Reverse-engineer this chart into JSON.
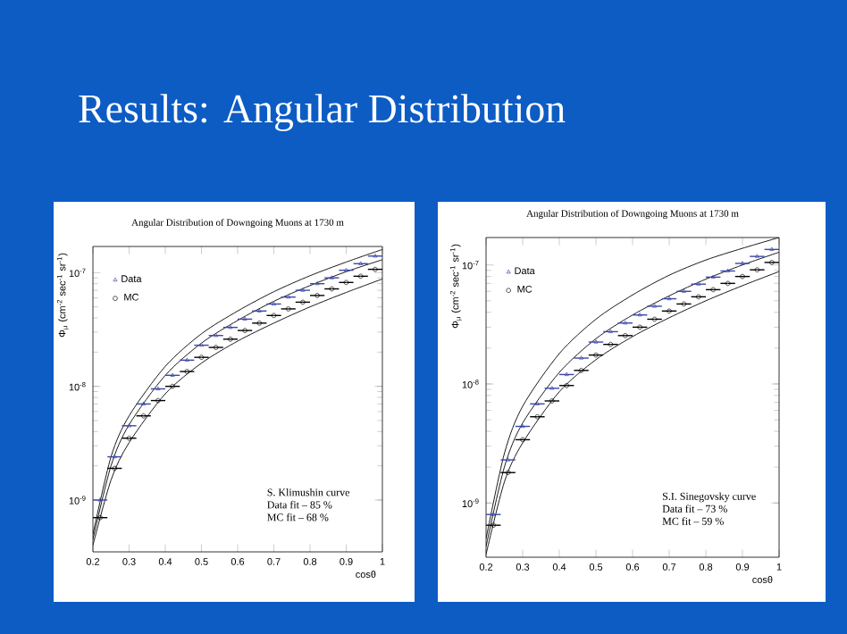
{
  "chart_data": [
    {
      "type": "other",
      "title": "Results: Angular Distribution"
    },
    {
      "type": "scatter",
      "title": "Angular Distribution of Downgoing Muons at 1730 m",
      "xlabel": "cosθ",
      "ylabel": "Φ$_{μ}$ (cm$^{-2}$ sec$^{-1}$ sr$^{-1}$)",
      "log": "y",
      "legend": "top left",
      "xlim": [
        0.2,
        1
      ],
      "ylim": [
        3.5e-10,
        1.7e-07
      ],
      "xticks": [
        0.2,
        0.3,
        0.4,
        0.5,
        0.6,
        0.7,
        0.8,
        0.9,
        1
      ],
      "yticks": [
        {
          "value": 1e-09,
          "label": "10$^{-9}$"
        },
        {
          "value": 1e-08,
          "label": "10$^{-8}$"
        },
        {
          "value": 1e-07,
          "label": "10$^{-7}$"
        }
      ],
      "x": [
        0.22,
        0.26,
        0.3,
        0.34,
        0.38,
        0.42,
        0.46,
        0.5,
        0.54,
        0.58,
        0.62,
        0.66,
        0.7,
        0.74,
        0.78,
        0.82,
        0.86,
        0.9,
        0.94,
        0.98
      ],
      "series": [
        {
          "name": "Data",
          "color": "#3a46a8",
          "marker": "triangle",
          "values": [
            1e-09,
            2.4e-09,
            4.5e-09,
            7e-09,
            9.5e-09,
            1.25e-08,
            1.7e-08,
            2.3e-08,
            2.8e-08,
            3.3e-08,
            3.9e-08,
            4.6e-08,
            5.3e-08,
            6.1e-08,
            7e-08,
            8e-08,
            9e-08,
            1.05e-07,
            1.2e-07,
            1.4e-07
          ],
          "xerrors": [
            0.02,
            0.02,
            0.02,
            0.02,
            0.02,
            0.02,
            0.02,
            0.02,
            0.02,
            0.02,
            0.02,
            0.02,
            0.02,
            0.02,
            0.02,
            0.02,
            0.02,
            0.02,
            0.02,
            0.02
          ]
        },
        {
          "name": "MC",
          "color": "#000000",
          "marker": "circle",
          "values": [
            7e-10,
            1.9e-09,
            3.5e-09,
            5.5e-09,
            7.5e-09,
            1e-08,
            1.35e-08,
            1.8e-08,
            2.2e-08,
            2.6e-08,
            3.1e-08,
            3.6e-08,
            4.2e-08,
            4.8e-08,
            5.5e-08,
            6.3e-08,
            7.2e-08,
            8.2e-08,
            9.3e-08,
            1.07e-07
          ],
          "xerrors": [
            0.02,
            0.02,
            0.02,
            0.02,
            0.02,
            0.02,
            0.02,
            0.02,
            0.02,
            0.02,
            0.02,
            0.02,
            0.02,
            0.02,
            0.02,
            0.02,
            0.02,
            0.02,
            0.02,
            0.02
          ]
        },
        {
          "type": "line",
          "color": "#000000",
          "marker": "none",
          "x": [
            0.2,
            0.25,
            0.3,
            0.4,
            0.5,
            0.6,
            0.7,
            0.8,
            0.9,
            1.0
          ],
          "values": [
            5e-10,
            2.4e-09,
            5.5e-09,
            1.5e-08,
            2.9e-08,
            4.6e-08,
            6.8e-08,
            9.4e-08,
            1.24e-07,
            1.6e-07
          ]
        },
        {
          "type": "line",
          "color": "#000000",
          "marker": "none",
          "x": [
            0.2,
            0.25,
            0.3,
            0.4,
            0.5,
            0.6,
            0.7,
            0.8,
            0.9,
            1.0
          ],
          "values": [
            4.5e-10,
            2e-09,
            4.6e-09,
            1.25e-08,
            2.4e-08,
            3.8e-08,
            5.6e-08,
            7.7e-08,
            1.02e-07,
            1.3e-07
          ]
        },
        {
          "type": "line",
          "color": "#000000",
          "marker": "none",
          "x": [
            0.2,
            0.25,
            0.3,
            0.4,
            0.5,
            0.6,
            0.7,
            0.8,
            0.9,
            1.0
          ],
          "values": [
            4e-10,
            1.5e-09,
            3.2e-09,
            8.6e-09,
            1.6e-08,
            2.5e-08,
            3.6e-08,
            5e-08,
            6.7e-08,
            8.8e-08
          ]
        }
      ],
      "annotations": [
        "S. Klimushin curve",
        "Data fit – 85 %",
        "MC fit – 68 %"
      ]
    },
    {
      "type": "scatter",
      "title": "Angular Distribution of Downgoing Muons at 1730 m",
      "xlabel": "cosθ",
      "ylabel": "Φ$_{μ}$ (cm$^{-2}$ sec$^{-1}$ sr$^{-1}$)",
      "log": "y",
      "legend": "top left",
      "xlim": [
        0.2,
        1
      ],
      "ylim": [
        3.5e-10,
        1.7e-07
      ],
      "xticks": [
        0.2,
        0.3,
        0.4,
        0.5,
        0.6,
        0.7,
        0.8,
        0.9,
        1
      ],
      "yticks": [
        {
          "value": 1e-09,
          "label": "10$^{-9}$"
        },
        {
          "value": 1e-08,
          "label": "10$^{-8}$"
        },
        {
          "value": 1e-07,
          "label": "10$^{-7}$"
        }
      ],
      "x": [
        0.22,
        0.26,
        0.3,
        0.34,
        0.38,
        0.42,
        0.46,
        0.5,
        0.54,
        0.58,
        0.62,
        0.66,
        0.7,
        0.74,
        0.78,
        0.82,
        0.86,
        0.9,
        0.94,
        0.98
      ],
      "series": [
        {
          "name": "Data",
          "color": "#3a46a8",
          "marker": "triangle",
          "values": [
            8e-10,
            2.3e-09,
            4.4e-09,
            6.8e-09,
            9.2e-09,
            1.2e-08,
            1.65e-08,
            2.25e-08,
            2.75e-08,
            3.25e-08,
            3.8e-08,
            4.5e-08,
            5.2e-08,
            6e-08,
            6.9e-08,
            7.9e-08,
            8.9e-08,
            1.03e-07,
            1.18e-07,
            1.35e-07
          ],
          "xerrors": [
            0.02,
            0.02,
            0.02,
            0.02,
            0.02,
            0.02,
            0.02,
            0.02,
            0.02,
            0.02,
            0.02,
            0.02,
            0.02,
            0.02,
            0.02,
            0.02,
            0.02,
            0.02,
            0.02,
            0.02
          ]
        },
        {
          "name": "MC",
          "color": "#000000",
          "marker": "circle",
          "values": [
            6.5e-10,
            1.8e-09,
            3.4e-09,
            5.3e-09,
            7.2e-09,
            9.7e-09,
            1.3e-08,
            1.75e-08,
            2.15e-08,
            2.55e-08,
            3e-08,
            3.5e-08,
            4.1e-08,
            4.7e-08,
            5.4e-08,
            6.2e-08,
            7e-08,
            8e-08,
            9.1e-08,
            1.05e-07
          ],
          "xerrors": [
            0.02,
            0.02,
            0.02,
            0.02,
            0.02,
            0.02,
            0.02,
            0.02,
            0.02,
            0.02,
            0.02,
            0.02,
            0.02,
            0.02,
            0.02,
            0.02,
            0.02,
            0.02,
            0.02,
            0.02
          ]
        },
        {
          "type": "line",
          "color": "#000000",
          "marker": "none",
          "x": [
            0.2,
            0.25,
            0.3,
            0.4,
            0.5,
            0.6,
            0.7,
            0.8,
            0.9,
            1.0
          ],
          "values": [
            5e-10,
            2.6e-09,
            6.5e-09,
            1.8e-08,
            3.5e-08,
            5.6e-08,
            8.2e-08,
            1.1e-07,
            1.38e-07,
            1.7e-07
          ]
        },
        {
          "type": "line",
          "color": "#000000",
          "marker": "none",
          "x": [
            0.2,
            0.25,
            0.3,
            0.4,
            0.5,
            0.6,
            0.7,
            0.8,
            0.9,
            1.0
          ],
          "values": [
            4.3e-10,
            2e-09,
            4.7e-09,
            1.25e-08,
            2.4e-08,
            3.8e-08,
            5.5e-08,
            7.6e-08,
            1e-07,
            1.28e-07
          ]
        },
        {
          "type": "line",
          "color": "#000000",
          "marker": "none",
          "x": [
            0.2,
            0.25,
            0.3,
            0.4,
            0.5,
            0.6,
            0.7,
            0.8,
            0.9,
            1.0
          ],
          "values": [
            3.7e-10,
            1.5e-09,
            3.2e-09,
            8.6e-09,
            1.6e-08,
            2.5e-08,
            3.6e-08,
            5e-08,
            6.7e-08,
            8.8e-08
          ]
        }
      ],
      "annotations": [
        "S.I. Sinegovsky curve",
        "Data fit – 73 %",
        "MC fit – 59 %"
      ]
    }
  ]
}
